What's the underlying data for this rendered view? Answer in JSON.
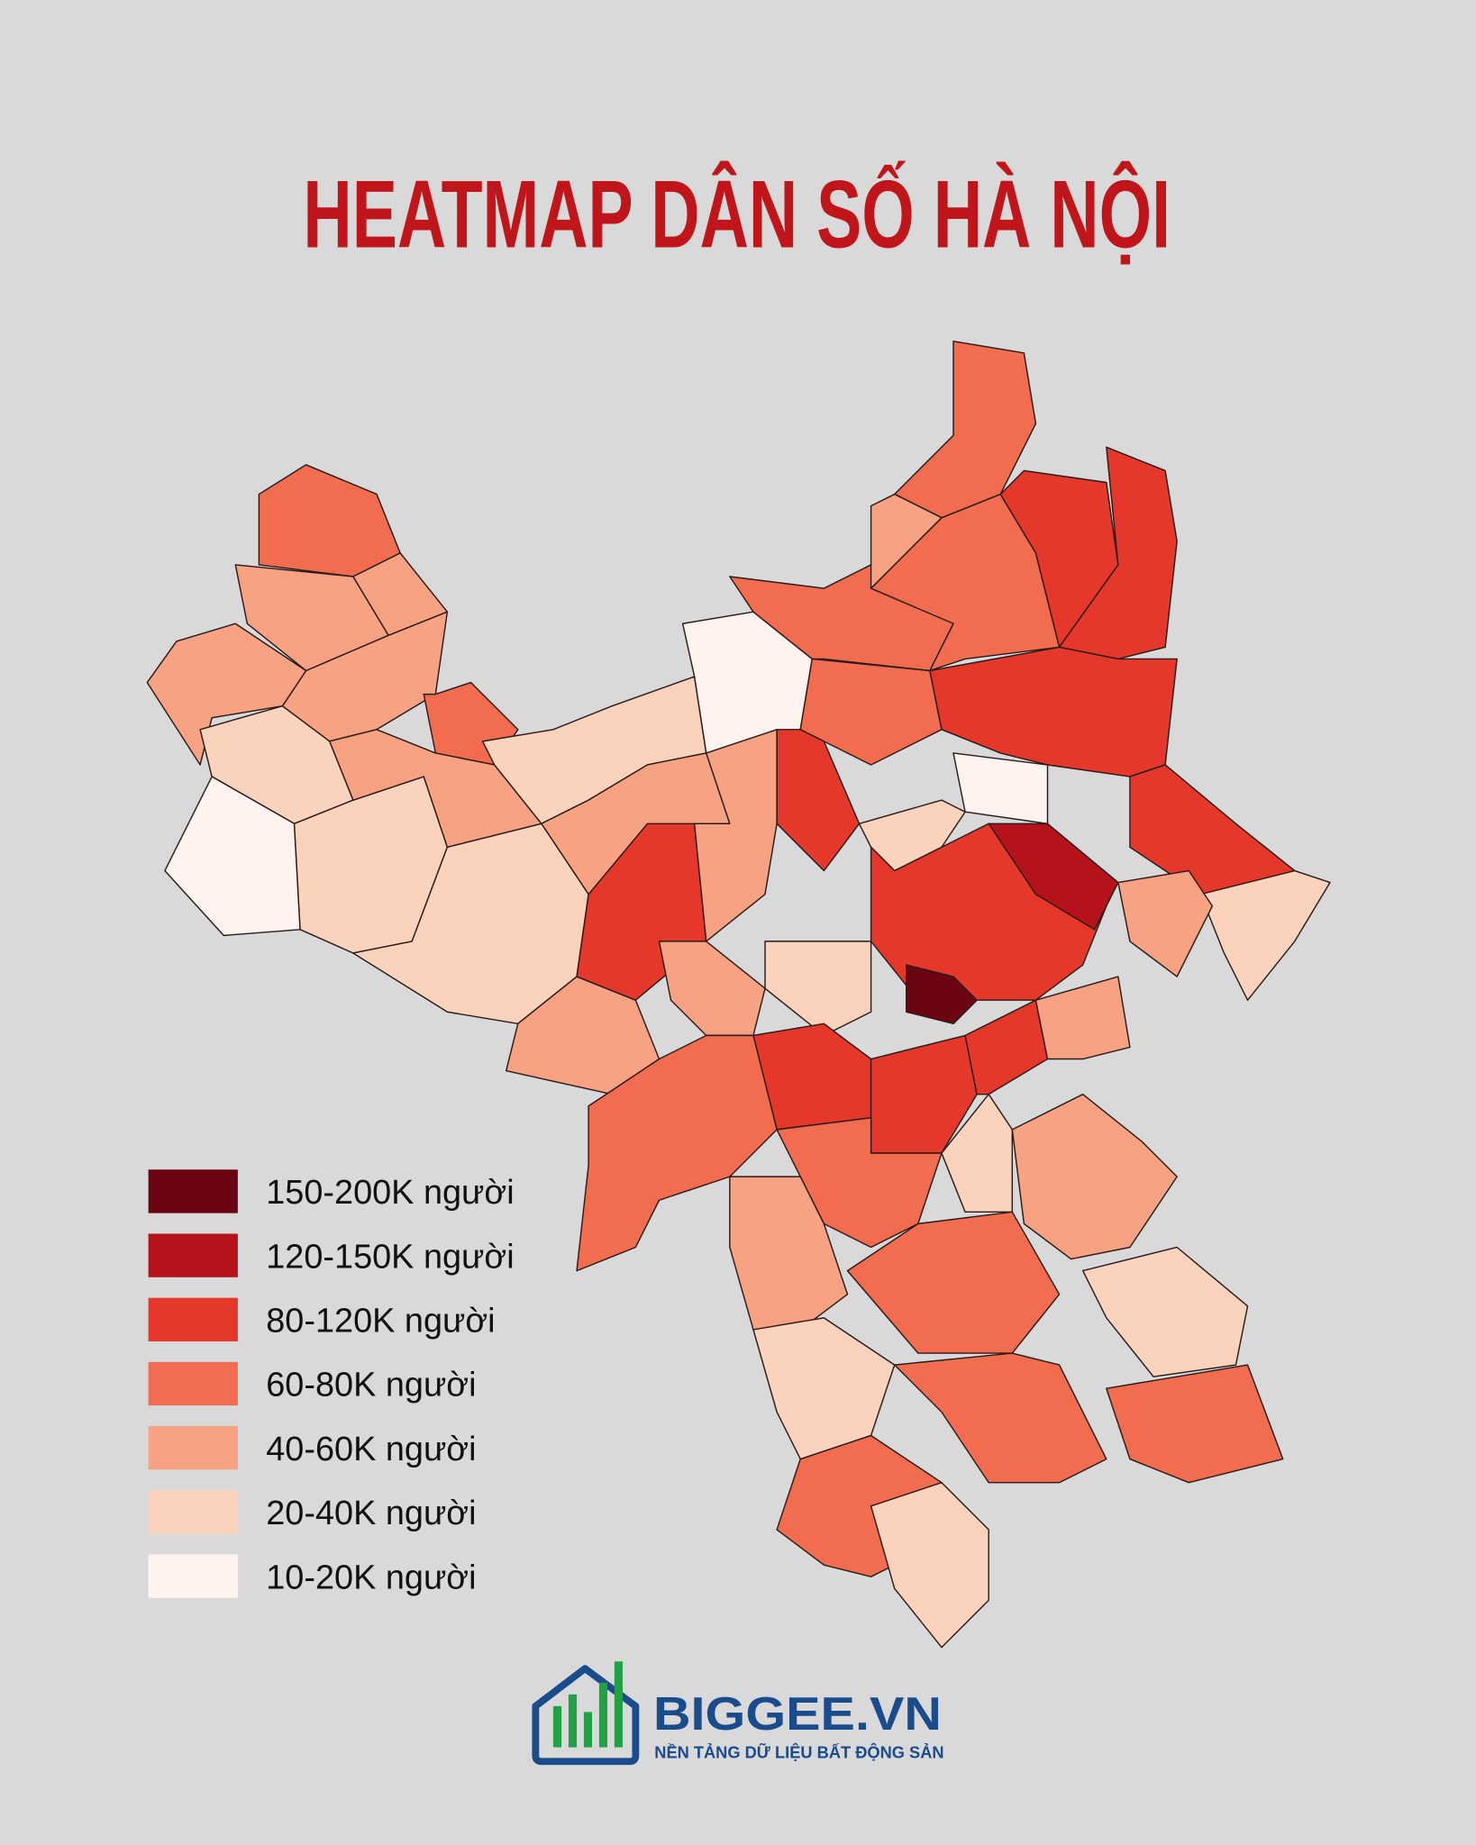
{
  "title": "HEATMAP DÂN SỐ HÀ NỘI",
  "legend": [
    {
      "label": "150-200K người",
      "color": "#6b0511"
    },
    {
      "label": "120-150K người",
      "color": "#b5121b"
    },
    {
      "label": "80-120K người",
      "color": "#e5382b"
    },
    {
      "label": "60-80K người",
      "color": "#f26d4f"
    },
    {
      "label": "40-60K người",
      "color": "#f7a383"
    },
    {
      "label": "20-40K người",
      "color": "#fbd3bd"
    },
    {
      "label": "10-20K người",
      "color": "#fff3ef"
    }
  ],
  "logo": {
    "name": "BIGGEE.VN",
    "tagline": "NỀN TẢNG DỮ LIỆU BẤT ĐỘNG SẢN"
  }
}
